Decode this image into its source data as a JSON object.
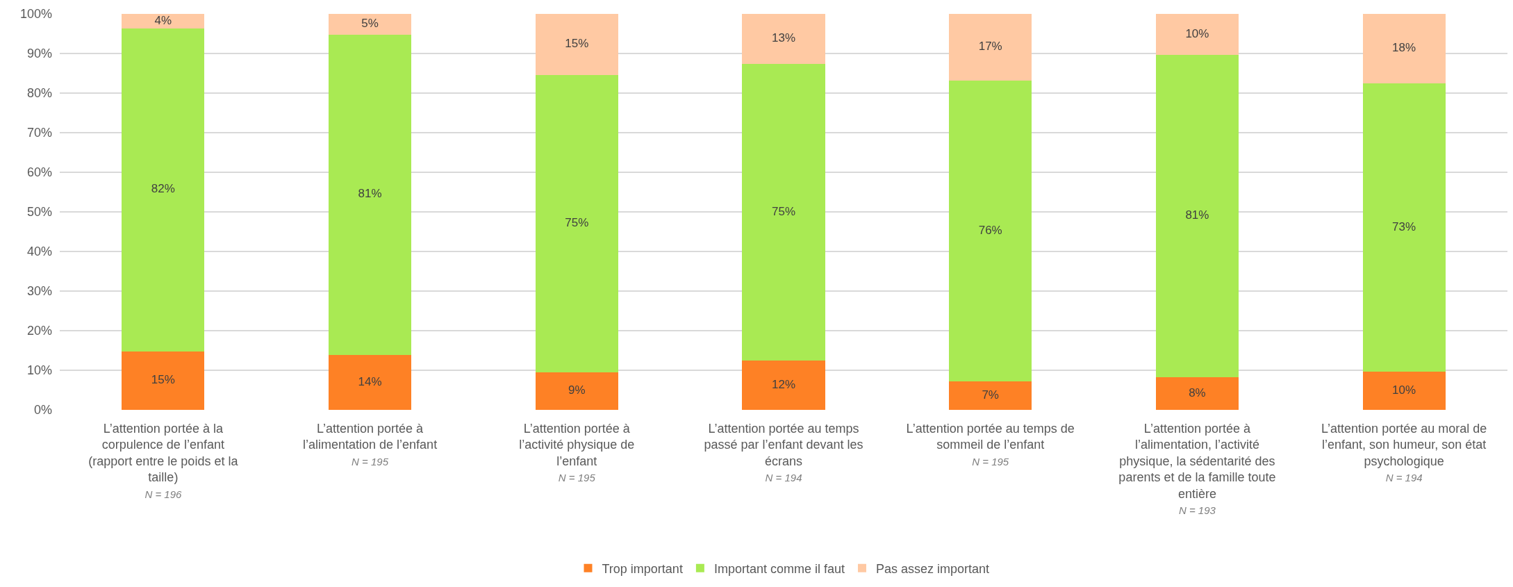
{
  "chart_data": {
    "type": "bar",
    "stacked": true,
    "categories": [
      "L’attention portée à la corpulence de l’enfant (rapport entre le poids et la taille)\nN = 196",
      "L’attention portée à l’alimentation de l’enfant\nN = 195",
      "L’attention portée à l’activité physique de l’enfant\nN = 195",
      "L’attention portée au temps passé par l’enfant devant les écrans\nN = 194",
      "L’attention portée au temps de sommeil de l’enfant\nN = 195",
      "L’attention portée à l’alimentation, l’activité physique, la sédentarité des parents et de la famille toute entière\nN = 193",
      "L’attention portée au moral de l’enfant, son humeur, son état psychologique\nN = 194"
    ],
    "series": [
      {
        "name": "Trop important",
        "color": "#fe8125",
        "values": [
          14.8,
          13.9,
          9.4,
          12.4,
          7.2,
          8.3,
          9.7
        ],
        "value_labels": [
          "15%",
          "14%",
          "9%",
          "12%",
          "7%",
          "8%",
          "10%"
        ]
      },
      {
        "name": "Important comme il faut",
        "color": "#a9ea53",
        "values": [
          81.6,
          80.9,
          75.2,
          74.9,
          76.0,
          81.3,
          72.7
        ],
        "value_labels": [
          "82%",
          "81%",
          "75%",
          "75%",
          "76%",
          "81%",
          "73%"
        ]
      },
      {
        "name": "Pas assez important",
        "color": "#ffc9a3",
        "values": [
          3.6,
          5.2,
          15.4,
          12.7,
          16.8,
          10.4,
          17.6
        ],
        "value_labels": [
          "4%",
          "5%",
          "15%",
          "13%",
          "17%",
          "10%",
          "18%"
        ]
      }
    ],
    "ylim": [
      0,
      100
    ],
    "yticks": [
      {
        "value": 0,
        "label": "0%"
      },
      {
        "value": 10,
        "label": "10%"
      },
      {
        "value": 20,
        "label": "20%"
      },
      {
        "value": 30,
        "label": "30%"
      },
      {
        "value": 40,
        "label": "40%"
      },
      {
        "value": 50,
        "label": "50%"
      },
      {
        "value": 60,
        "label": "60%"
      },
      {
        "value": 70,
        "label": "70%"
      },
      {
        "value": 80,
        "label": "80%"
      },
      {
        "value": 90,
        "label": "90%"
      },
      {
        "value": 100,
        "label": "100%"
      }
    ],
    "grid": "y",
    "legend": "bottom"
  }
}
